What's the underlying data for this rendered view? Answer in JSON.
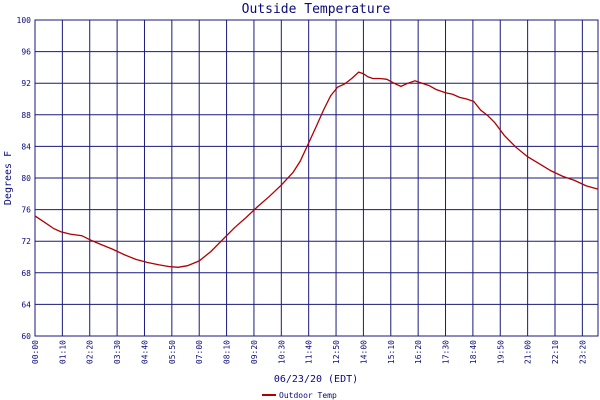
{
  "chart_data": {
    "type": "line",
    "title": "Outside Temperature",
    "xlabel": "06/23/20 (EDT)",
    "ylabel": "Degrees F",
    "ylim": [
      60,
      100
    ],
    "yticks": [
      "100",
      "96",
      "92",
      "88",
      "84",
      "80",
      "76",
      "72",
      "68",
      "64",
      "60"
    ],
    "xlim_hours": [
      0,
      24
    ],
    "xticks": [
      "00:00",
      "01:10",
      "02:20",
      "03:30",
      "04:40",
      "05:50",
      "07:00",
      "08:10",
      "09:20",
      "10:30",
      "11:40",
      "12:50",
      "14:00",
      "15:10",
      "16:20",
      "17:30",
      "18:40",
      "19:50",
      "21:00",
      "22:10",
      "23:20"
    ],
    "grid": true,
    "legend_position": "bottom-left",
    "series": [
      {
        "name": "Outdoor Temp",
        "color": "#b00000",
        "x": [
          0,
          0.4,
          0.8,
          1.1,
          1.5,
          2.0,
          2.4,
          2.8,
          3.3,
          3.8,
          4.3,
          4.8,
          5.3,
          5.7,
          6.1,
          6.5,
          7.0,
          7.5,
          8.0,
          8.5,
          9.0,
          9.5,
          10.0,
          10.5,
          11.0,
          11.3,
          11.6,
          12.0,
          12.3,
          12.6,
          12.9,
          13.2,
          13.5,
          13.8,
          14.0,
          14.2,
          14.4,
          14.7,
          15.0,
          15.3,
          15.6,
          15.9,
          16.2,
          16.5,
          16.8,
          17.1,
          17.5,
          17.8,
          18.1,
          18.4,
          18.7,
          19.0,
          19.3,
          19.6,
          20.0,
          20.5,
          21.0,
          21.5,
          22.0,
          22.5,
          23.0,
          23.5,
          24.0
        ],
        "values": [
          75.2,
          74.4,
          73.6,
          73.2,
          72.9,
          72.7,
          72.1,
          71.6,
          71.0,
          70.3,
          69.7,
          69.3,
          69.0,
          68.8,
          68.7,
          68.9,
          69.5,
          70.7,
          72.2,
          73.7,
          75.0,
          76.4,
          77.7,
          79.1,
          80.7,
          82.1,
          84.0,
          86.6,
          88.6,
          90.4,
          91.5,
          91.9,
          92.6,
          93.4,
          93.2,
          92.8,
          92.6,
          92.6,
          92.5,
          92.0,
          91.6,
          92.0,
          92.3,
          92.0,
          91.7,
          91.2,
          90.8,
          90.6,
          90.2,
          90.0,
          89.7,
          88.6,
          87.9,
          87.0,
          85.4,
          83.9,
          82.7,
          81.8,
          80.9,
          80.2,
          79.7,
          79.0,
          78.6
        ]
      }
    ]
  }
}
